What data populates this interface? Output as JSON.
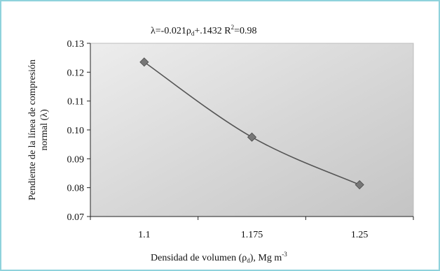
{
  "chart_data": {
    "type": "line",
    "equation": "λ=-0.021ρd+.1432   R²=0.98",
    "equation_parts": {
      "lambda": "λ=-0.021ρ",
      "rho_sub": "d",
      "rest": "+.1432   R",
      "r_sup": "2",
      "r_val": "=0.98"
    },
    "ylabel_line1": "Pendiente de la línea de compresión",
    "ylabel_line2": "normal (λ)",
    "xlabel_main": "Densidad de volumen (ρ",
    "xlabel_sub": "d",
    "xlabel_units": "),  Mg m",
    "xlabel_sup": "-3",
    "categories": [
      "1.1",
      "1.175",
      "1.25"
    ],
    "values": [
      0.1235,
      0.0975,
      0.081
    ],
    "ylim": [
      0.07,
      0.13
    ],
    "yticks": [
      "0.07",
      "0.08",
      "0.09",
      "0.10",
      "0.11",
      "0.12",
      "0.13"
    ],
    "marker": "diamond",
    "line_color": "#555555",
    "marker_color": "#777777",
    "grid": false
  }
}
